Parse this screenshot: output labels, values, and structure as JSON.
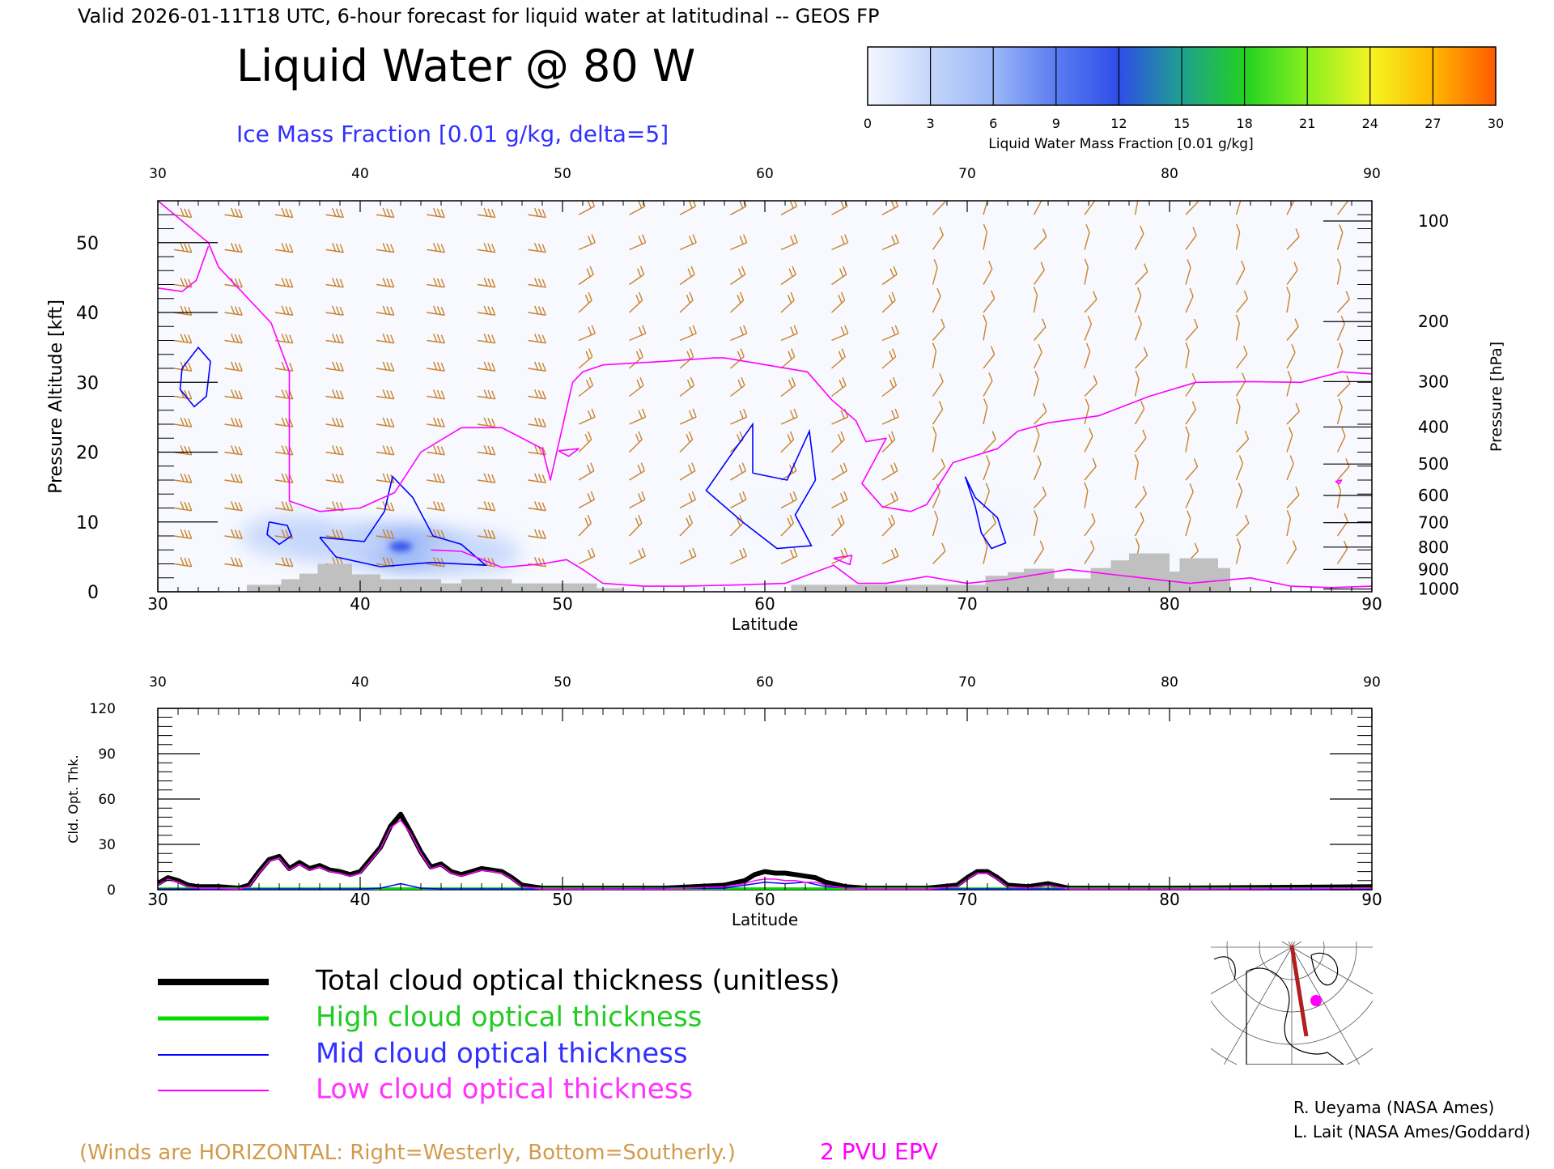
{
  "header": {
    "valid_line": "Valid 2026-01-11T18 UTC, 6-hour forecast for liquid water at latitudinal -- GEOS FP",
    "title": "Liquid Water @ 80 W",
    "subtitle": "Ice Mass Fraction [0.01 g/kg, delta=5]"
  },
  "colorbar": {
    "label": "Liquid Water Mass Fraction [0.01 g/kg]",
    "ticks": [
      "0",
      "3",
      "6",
      "9",
      "12",
      "15",
      "18",
      "21",
      "24",
      "27",
      "30"
    ],
    "colors": [
      "#f4f7ff",
      "#c5d6fb",
      "#9bb7f7",
      "#5a7cf0",
      "#2f4de8",
      "#1fa090",
      "#22d022",
      "#88f020",
      "#f4f422",
      "#ffb800",
      "#ff5a00"
    ]
  },
  "colors": {
    "wind_barb": "#c8822a",
    "epv_contour": "#ff00ff",
    "ice_contour": "#0000ff",
    "terrain": "#c0c0c0",
    "total_line": "#000000",
    "high_line": "#00dd00",
    "mid_line": "#0000ff",
    "low_line": "#ff00ff"
  },
  "chart_data": [
    {
      "type": "heatmap",
      "name": "liquid-water-cross-section",
      "xlabel": "Latitude",
      "ylabel_left": "Pressure Altitude [kft]",
      "ylabel_right": "Pressure [hPa]",
      "xlim": [
        30,
        90
      ],
      "ylim": [
        0,
        56
      ],
      "x_ticks": [
        30,
        40,
        50,
        60,
        70,
        80,
        90
      ],
      "y_ticks_left": [
        0,
        10,
        20,
        30,
        40,
        50
      ],
      "y_ticks_right": [
        {
          "label": "100",
          "kft": 53.1
        },
        {
          "label": "200",
          "kft": 38.7
        },
        {
          "label": "300",
          "kft": 30.1
        },
        {
          "label": "400",
          "kft": 23.6
        },
        {
          "label": "500",
          "kft": 18.3
        },
        {
          "label": "600",
          "kft": 13.8
        },
        {
          "label": "700",
          "kft": 9.9
        },
        {
          "label": "800",
          "kft": 6.4
        },
        {
          "label": "900",
          "kft": 3.2
        },
        {
          "label": "1000",
          "kft": 0.4
        }
      ],
      "liquid_water_blobs": [
        {
          "lat": 41.5,
          "kft": 6.5,
          "value": 6
        },
        {
          "lat": 43.0,
          "kft": 6.0,
          "value": 5
        },
        {
          "lat": 39.0,
          "kft": 7.0,
          "value": 3
        },
        {
          "lat": 45.5,
          "kft": 5.5,
          "value": 3
        },
        {
          "lat": 36.5,
          "kft": 8.0,
          "value": 2
        },
        {
          "lat": 61.0,
          "kft": 11.0,
          "value": 1
        },
        {
          "lat": 71.0,
          "kft": 11.0,
          "value": 1
        },
        {
          "lat": 78.0,
          "kft": 4.0,
          "value": 1
        },
        {
          "lat": 42.0,
          "kft": 6.5,
          "value": 12
        }
      ],
      "ice_contours": [
        [
          [
            31.2,
            32
          ],
          [
            32.0,
            35
          ],
          [
            32.6,
            33
          ],
          [
            32.4,
            28
          ],
          [
            31.8,
            26.5
          ],
          [
            31.1,
            29
          ],
          [
            31.2,
            32
          ]
        ],
        [
          [
            35.5,
            10
          ],
          [
            36.4,
            9.5
          ],
          [
            36.6,
            8
          ],
          [
            36.0,
            6.8
          ],
          [
            35.4,
            8.2
          ],
          [
            35.5,
            10
          ]
        ],
        [
          [
            38.0,
            7.8
          ],
          [
            40.2,
            7.2
          ],
          [
            41.2,
            11.5
          ],
          [
            41.6,
            16.5
          ],
          [
            42.6,
            13.5
          ],
          [
            43.6,
            8
          ],
          [
            45.0,
            6.8
          ],
          [
            46.2,
            3.8
          ],
          [
            43.5,
            4.2
          ],
          [
            41.0,
            3.6
          ],
          [
            38.8,
            5
          ],
          [
            38.0,
            7.8
          ]
        ],
        [
          [
            59.4,
            17
          ],
          [
            61.1,
            16
          ],
          [
            62.2,
            23
          ],
          [
            62.5,
            16
          ],
          [
            61.5,
            11
          ],
          [
            62.3,
            6.6
          ],
          [
            60.6,
            6.2
          ],
          [
            58.9,
            10
          ],
          [
            57.1,
            14.5
          ],
          [
            58.3,
            19.5
          ],
          [
            59.4,
            24
          ],
          [
            59.4,
            17
          ]
        ],
        [
          [
            69.9,
            16.5
          ],
          [
            70.4,
            12.2
          ],
          [
            70.7,
            8.4
          ],
          [
            71.2,
            6.2
          ],
          [
            71.9,
            7
          ],
          [
            71.5,
            10.6
          ],
          [
            70.4,
            13.5
          ],
          [
            69.9,
            16.5
          ]
        ]
      ],
      "epv_2pvu": [
        [
          [
            30.0,
            56
          ],
          [
            32.5,
            50
          ],
          [
            33.0,
            46.5
          ],
          [
            35.6,
            38.5
          ],
          [
            36.5,
            31.5
          ],
          [
            36.5,
            13
          ],
          [
            38.0,
            11.5
          ],
          [
            40.0,
            12
          ],
          [
            41.7,
            14.2
          ],
          [
            43.0,
            20
          ],
          [
            45.0,
            23.5
          ],
          [
            47.0,
            23.5
          ],
          [
            49.0,
            20.5
          ],
          [
            49.4,
            16
          ],
          [
            50.5,
            30
          ],
          [
            51.0,
            31.5
          ],
          [
            52.0,
            32.5
          ],
          [
            55.0,
            33.0
          ],
          [
            57.5,
            33.5
          ],
          [
            58.0,
            33.5
          ],
          [
            62.1,
            31.5
          ],
          [
            63.3,
            27.5
          ],
          [
            64.5,
            24.5
          ],
          [
            65.0,
            21.5
          ],
          [
            66.0,
            22
          ],
          [
            64.8,
            15.5
          ],
          [
            65.8,
            12.2
          ],
          [
            67.2,
            11.5
          ],
          [
            68.0,
            12.5
          ],
          [
            69.3,
            18.5
          ],
          [
            71.5,
            20.5
          ],
          [
            72.5,
            23
          ],
          [
            74.0,
            24.2
          ],
          [
            76.5,
            25.2
          ],
          [
            79.0,
            28
          ],
          [
            81.3,
            30
          ],
          [
            84.0,
            30.1
          ],
          [
            86.5,
            30
          ],
          [
            88.5,
            31.5
          ],
          [
            90.0,
            31.2
          ]
        ],
        [
          [
            30.0,
            43.5
          ],
          [
            31.2,
            43
          ],
          [
            31.9,
            44.6
          ],
          [
            32.5,
            49.5
          ]
        ],
        [
          [
            43.5,
            6
          ],
          [
            45.0,
            5.8
          ],
          [
            47.0,
            3.5
          ],
          [
            49.0,
            4.0
          ],
          [
            50.2,
            4.6
          ],
          [
            51.0,
            3.2
          ],
          [
            52.0,
            1.2
          ],
          [
            54.0,
            0.8
          ],
          [
            56.0,
            0.8
          ],
          [
            58.8,
            1.0
          ],
          [
            61.0,
            1.2
          ],
          [
            63.4,
            3.8
          ],
          [
            64.6,
            1.2
          ],
          [
            66.0,
            1.2
          ],
          [
            68.0,
            2.2
          ],
          [
            70.0,
            1.2
          ],
          [
            72.0,
            1.8
          ],
          [
            75.0,
            3.2
          ],
          [
            78.0,
            2.2
          ],
          [
            81.0,
            1.2
          ],
          [
            84.0,
            2.0
          ],
          [
            86.0,
            0.8
          ],
          [
            88.0,
            0.6
          ],
          [
            90.0,
            0.8
          ]
        ],
        [
          [
            49.8,
            20.2
          ],
          [
            50.3,
            19.4
          ],
          [
            50.8,
            20.5
          ],
          [
            49.8,
            20.2
          ]
        ],
        [
          [
            63.4,
            4.8
          ],
          [
            64.3,
            5.2
          ],
          [
            64.2,
            3.9
          ],
          [
            63.4,
            4.8
          ]
        ],
        [
          [
            88.2,
            15.8
          ],
          [
            88.5,
            16.0
          ],
          [
            88.4,
            15.5
          ],
          [
            88.2,
            15.8
          ]
        ]
      ],
      "terrain": [
        {
          "lat0": 34.4,
          "lat1": 36.1,
          "kft": 1.0
        },
        {
          "lat0": 36.1,
          "lat1": 37.0,
          "kft": 1.8
        },
        {
          "lat0": 37.0,
          "lat1": 37.9,
          "kft": 2.6
        },
        {
          "lat0": 37.9,
          "lat1": 39.6,
          "kft": 4.0
        },
        {
          "lat0": 39.6,
          "lat1": 41.0,
          "kft": 2.5
        },
        {
          "lat0": 41.0,
          "lat1": 44.0,
          "kft": 1.8
        },
        {
          "lat0": 44.0,
          "lat1": 45.0,
          "kft": 1.2
        },
        {
          "lat0": 45.0,
          "lat1": 47.5,
          "kft": 1.8
        },
        {
          "lat0": 47.5,
          "lat1": 51.7,
          "kft": 1.2
        },
        {
          "lat0": 51.7,
          "lat1": 53.0,
          "kft": 0.5
        },
        {
          "lat0": 61.3,
          "lat1": 70.9,
          "kft": 1.0
        },
        {
          "lat0": 70.9,
          "lat1": 72.0,
          "kft": 2.3
        },
        {
          "lat0": 72.0,
          "lat1": 72.8,
          "kft": 2.8
        },
        {
          "lat0": 72.8,
          "lat1": 74.3,
          "kft": 3.3
        },
        {
          "lat0": 74.3,
          "lat1": 76.1,
          "kft": 1.9
        },
        {
          "lat0": 76.1,
          "lat1": 77.1,
          "kft": 3.4
        },
        {
          "lat0": 77.1,
          "lat1": 78.0,
          "kft": 4.5
        },
        {
          "lat0": 78.0,
          "lat1": 80.0,
          "kft": 5.5
        },
        {
          "lat0": 80.0,
          "lat1": 80.5,
          "kft": 2.9
        },
        {
          "lat0": 80.5,
          "lat1": 82.4,
          "kft": 4.8
        },
        {
          "lat0": 82.4,
          "lat1": 83.0,
          "kft": 3.4
        }
      ]
    },
    {
      "type": "line",
      "name": "cloud-optical-thickness",
      "xlabel": "Latitude",
      "ylabel": "Cld. Opt. Thk.",
      "xlim": [
        30,
        90
      ],
      "ylim": [
        0,
        120
      ],
      "x_ticks": [
        30,
        40,
        50,
        60,
        70,
        80,
        90
      ],
      "y_ticks": [
        0,
        30,
        60,
        90,
        120
      ],
      "series": [
        {
          "name": "Total cloud optical thickness (unitless)",
          "key": "total",
          "x": [
            30,
            30.5,
            31,
            31.5,
            32,
            33,
            34,
            34.5,
            35,
            35.5,
            36,
            36.5,
            37,
            37.5,
            38,
            38.5,
            39,
            39.5,
            40,
            40.5,
            41,
            41.5,
            42,
            42.5,
            43,
            43.5,
            44,
            44.5,
            45,
            45.5,
            46,
            46.5,
            47,
            47.5,
            48,
            49,
            50,
            55,
            58,
            59,
            59.5,
            60,
            60.5,
            61,
            61.5,
            62,
            62.5,
            63,
            64,
            65,
            68,
            69.5,
            70,
            70.5,
            71,
            71.5,
            72,
            73,
            74,
            75,
            80,
            90
          ],
          "y": [
            4,
            8,
            6,
            3,
            2,
            2,
            1,
            3,
            12,
            20,
            22,
            14,
            18,
            14,
            16,
            13,
            12,
            10,
            12,
            20,
            28,
            42,
            50,
            38,
            25,
            15,
            17,
            12,
            10,
            12,
            14,
            13,
            12,
            8,
            3,
            1,
            1,
            1,
            3,
            6,
            10,
            12,
            11,
            11,
            10,
            9,
            8,
            5,
            2,
            1,
            1,
            3,
            8,
            12,
            12,
            8,
            3,
            2,
            4,
            1,
            1,
            2
          ]
        },
        {
          "name": "High cloud optical thickness",
          "key": "high",
          "x": [
            30,
            40,
            50,
            60,
            70,
            80,
            90
          ],
          "y": [
            0.5,
            0.5,
            0.5,
            0.5,
            0.5,
            0.5,
            0.5
          ]
        },
        {
          "name": "Mid cloud optical thickness",
          "key": "mid",
          "x": [
            30,
            35,
            40,
            41,
            42,
            43,
            44,
            50,
            58,
            60,
            61,
            62,
            63,
            65,
            70,
            80,
            90
          ],
          "y": [
            0.5,
            0.5,
            0.5,
            1,
            4,
            1,
            0.5,
            0.5,
            1,
            5,
            4,
            5,
            2,
            0.5,
            0.5,
            0.5,
            0.5
          ]
        },
        {
          "name": "Low cloud optical thickness",
          "key": "low",
          "x": [
            30,
            30.5,
            31,
            31.5,
            32,
            33,
            34,
            34.5,
            35,
            35.5,
            36,
            36.5,
            37,
            37.5,
            38,
            38.5,
            39,
            39.5,
            40,
            40.5,
            41,
            41.5,
            42,
            42.5,
            43,
            43.5,
            44,
            44.5,
            45,
            45.5,
            46,
            46.5,
            47,
            47.5,
            48,
            49,
            50,
            55,
            58,
            59,
            59.5,
            60,
            60.5,
            61,
            61.5,
            62,
            62.5,
            63,
            64,
            65,
            68,
            69.5,
            70,
            70.5,
            71,
            71.5,
            72,
            73,
            74,
            75,
            80,
            90
          ],
          "y": [
            3,
            7,
            5,
            2,
            1,
            1,
            0.5,
            2,
            11,
            19,
            21,
            13,
            17,
            13,
            15,
            12,
            11,
            9,
            11,
            19,
            27,
            41,
            46,
            37,
            24,
            14,
            16,
            11,
            9,
            11,
            13,
            12,
            11,
            7,
            2,
            0.5,
            0.5,
            0.5,
            2,
            4,
            6,
            7,
            7,
            6,
            6,
            5,
            5,
            3,
            1,
            0.5,
            0.5,
            2,
            7,
            11,
            11,
            7,
            2,
            1,
            3,
            0.5,
            0.5,
            1
          ]
        }
      ]
    }
  ],
  "legend": {
    "total": "Total cloud optical thickness (unitless)",
    "high": "High cloud optical thickness",
    "mid": "Mid cloud optical thickness",
    "low": "Low cloud optical thickness"
  },
  "footer": {
    "winds_note": "(Winds are HORIZONTAL: Right=Westerly, Bottom=Southerly.)",
    "epv_label": "2 PVU EPV",
    "credit1": "R. Ueyama (NASA Ames)",
    "credit2": "L. Lait (NASA Ames/Goddard)"
  },
  "locator_map": {
    "icon": "polar-stereographic-map-icon",
    "section_line_color": "#b02020",
    "marker_color": "#ff00ff"
  }
}
